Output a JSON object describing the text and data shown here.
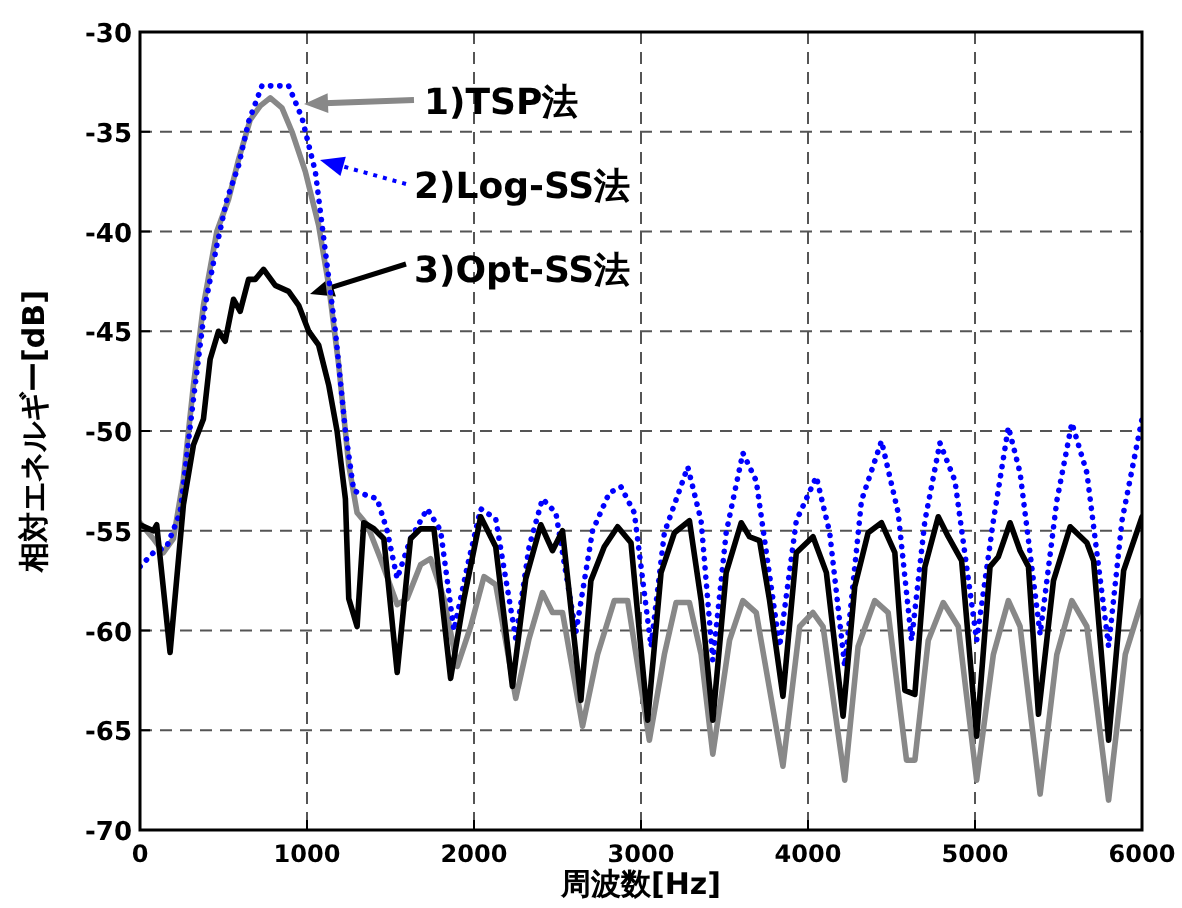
{
  "chart_data": {
    "type": "line",
    "xlabel": "周波数[Hz]",
    "ylabel": "相対エネルギー[dB]",
    "xlim": [
      0,
      6000
    ],
    "ylim": [
      -70,
      -30
    ],
    "xticks": [
      0,
      1000,
      2000,
      3000,
      4000,
      5000,
      6000
    ],
    "yticks": [
      -70,
      -65,
      -60,
      -55,
      -50,
      -45,
      -40,
      -35,
      -30
    ],
    "grid": true,
    "legend": "top",
    "series": [
      {
        "name": "1)TSP法",
        "color": "#888888",
        "line_style": "solid",
        "x": [
          0,
          80,
          140,
          200,
          260,
          320,
          380,
          460,
          530,
          590,
          660,
          720,
          780,
          850,
          910,
          990,
          1070,
          1130,
          1190,
          1250,
          1300,
          1360,
          1440,
          1540,
          1600,
          1680,
          1740,
          1820,
          1900,
          1980,
          2060,
          2130,
          2250,
          2330,
          2410,
          2470,
          2530,
          2650,
          2740,
          2840,
          2920,
          3050,
          3140,
          3210,
          3290,
          3360,
          3430,
          3530,
          3610,
          3690,
          3850,
          3950,
          4030,
          4090,
          4220,
          4300,
          4400,
          4480,
          4590,
          4640,
          4720,
          4810,
          4900,
          5010,
          5110,
          5200,
          5270,
          5390,
          5490,
          5580,
          5670,
          5800,
          5900,
          6000
        ],
        "values": [
          -54.6,
          -55.4,
          -56.1,
          -55.4,
          -52.4,
          -47.7,
          -43.7,
          -40,
          -38.4,
          -36.4,
          -34.4,
          -33.7,
          -33.3,
          -33.8,
          -35,
          -37,
          -39.7,
          -42.7,
          -46.7,
          -51.7,
          -54.1,
          -54.7,
          -56.4,
          -58.7,
          -58.4,
          -56.7,
          -56.4,
          -58.4,
          -61.8,
          -59.8,
          -57.3,
          -57.7,
          -63.4,
          -60.4,
          -58.1,
          -59.1,
          -59.1,
          -64.8,
          -61.2,
          -58.5,
          -58.5,
          -65.5,
          -61.2,
          -58.6,
          -58.6,
          -61.2,
          -66.2,
          -60.5,
          -58.5,
          -59.1,
          -66.8,
          -59.8,
          -59.1,
          -59.8,
          -67.5,
          -60.8,
          -58.5,
          -59.1,
          -66.5,
          -66.5,
          -60.5,
          -58.6,
          -59.8,
          -67.5,
          -61.2,
          -58.5,
          -59.8,
          -68.2,
          -61.2,
          -58.5,
          -59.8,
          -68.5,
          -61.2,
          -58.5
        ]
      },
      {
        "name": "2)Log-SS法",
        "color": "#0000ff",
        "line_style": "dotted",
        "x": [
          0,
          80,
          160,
          240,
          320,
          390,
          460,
          520,
          590,
          650,
          730,
          810,
          890,
          970,
          1050,
          1110,
          1170,
          1230,
          1280,
          1350,
          1420,
          1480,
          1540,
          1620,
          1720,
          1800,
          1880,
          1960,
          2040,
          2130,
          2250,
          2330,
          2410,
          2490,
          2610,
          2710,
          2810,
          2880,
          2960,
          3060,
          3140,
          3280,
          3360,
          3430,
          3510,
          3610,
          3690,
          3830,
          3930,
          4050,
          4130,
          4220,
          4320,
          4440,
          4540,
          4620,
          4700,
          4790,
          4880,
          5010,
          5110,
          5200,
          5270,
          5390,
          5490,
          5580,
          5670,
          5800,
          5880,
          6000
        ],
        "values": [
          -56.8,
          -56.1,
          -55.8,
          -54.1,
          -48.4,
          -43.7,
          -40.7,
          -38.4,
          -36.7,
          -34.5,
          -32.7,
          -32.7,
          -32.7,
          -34.3,
          -37,
          -41,
          -45,
          -50,
          -53,
          -53.2,
          -53.4,
          -55,
          -57.4,
          -55.4,
          -53.9,
          -55,
          -60,
          -56.8,
          -53.9,
          -54.4,
          -60.4,
          -55.8,
          -53.4,
          -54.1,
          -60.1,
          -55,
          -53.1,
          -52.8,
          -54.1,
          -60.8,
          -55.1,
          -51.8,
          -54.5,
          -61.5,
          -55.1,
          -51.1,
          -52.5,
          -60.8,
          -54.5,
          -52.3,
          -55.1,
          -61.8,
          -53.5,
          -50.5,
          -54.1,
          -60.5,
          -54.5,
          -50.6,
          -52.5,
          -60.5,
          -54.5,
          -49.8,
          -52.1,
          -60.2,
          -53.5,
          -49.6,
          -52.1,
          -60.8,
          -54.5,
          -49.4
        ]
      },
      {
        "name": "3)Opt-SS法",
        "color": "#000000",
        "line_style": "solid",
        "x": [
          0,
          80,
          100,
          180,
          260,
          320,
          380,
          420,
          470,
          510,
          560,
          600,
          650,
          690,
          740,
          810,
          890,
          950,
          1010,
          1070,
          1130,
          1180,
          1230,
          1250,
          1300,
          1340,
          1400,
          1460,
          1540,
          1620,
          1680,
          1760,
          1860,
          1940,
          2040,
          2130,
          2230,
          2310,
          2400,
          2470,
          2530,
          2640,
          2700,
          2780,
          2860,
          2940,
          3040,
          3120,
          3200,
          3290,
          3360,
          3430,
          3510,
          3600,
          3650,
          3710,
          3770,
          3850,
          3930,
          4030,
          4110,
          4210,
          4280,
          4360,
          4440,
          4520,
          4580,
          4640,
          4700,
          4780,
          4840,
          4920,
          5010,
          5090,
          5140,
          5210,
          5270,
          5320,
          5380,
          5470,
          5570,
          5670,
          5710,
          5800,
          5890,
          6000
        ],
        "values": [
          -54.7,
          -55,
          -54.7,
          -61.1,
          -53.7,
          -50.7,
          -49.4,
          -46.4,
          -45,
          -45.5,
          -43.4,
          -44,
          -42.4,
          -42.4,
          -41.9,
          -42.7,
          -43,
          -43.7,
          -45,
          -45.7,
          -47.7,
          -50,
          -53.4,
          -58.4,
          -59.8,
          -54.6,
          -54.9,
          -55.4,
          -62.1,
          -55.4,
          -54.9,
          -54.9,
          -62.4,
          -58.4,
          -54.3,
          -55.8,
          -62.8,
          -57.4,
          -54.7,
          -56,
          -55,
          -63.5,
          -57.5,
          -55.8,
          -54.8,
          -55.6,
          -64.5,
          -57.1,
          -55.1,
          -54.5,
          -58.5,
          -64.5,
          -57.1,
          -54.6,
          -55.3,
          -55.5,
          -58.5,
          -63.3,
          -56.1,
          -55.3,
          -57.1,
          -64.3,
          -57.8,
          -55.1,
          -54.6,
          -56.1,
          -63,
          -63.2,
          -56.8,
          -54.3,
          -55.3,
          -56.5,
          -65.3,
          -56.8,
          -56.3,
          -54.6,
          -56,
          -56.8,
          -64.2,
          -57.5,
          -54.8,
          -55.6,
          -56.5,
          -65.5,
          -57,
          -54.3
        ]
      }
    ]
  }
}
